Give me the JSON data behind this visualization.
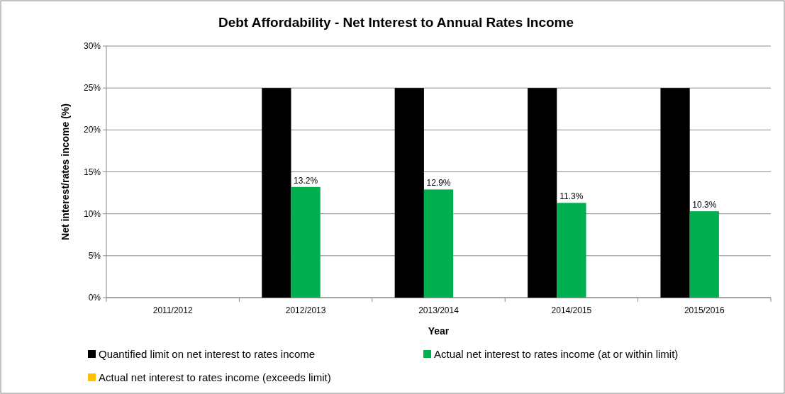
{
  "chart_data": {
    "type": "bar",
    "title": "Debt  Affordability - Net Interest to Annual Rates Income",
    "xlabel": "Year",
    "ylabel": "Net interest/rates income (%)",
    "categories": [
      "2011/2012",
      "2012/2013",
      "2013/2014",
      "2014/2015",
      "2015/2016"
    ],
    "series": [
      {
        "name": "Quantified limit on net interest to rates income",
        "color": "#000000",
        "values": [
          null,
          25,
          25,
          25,
          25
        ]
      },
      {
        "name": "Actual net interest to rates income (at or within limit)",
        "color": "#00b050",
        "values": [
          null,
          13.2,
          12.9,
          11.3,
          10.3
        ],
        "value_labels": [
          null,
          "13.2%",
          "12.9%",
          "11.3%",
          "10.3%"
        ]
      },
      {
        "name": "Actual net interest to rates income (exceeds limit)",
        "color": "#ffc000",
        "values": [
          null,
          null,
          null,
          null,
          null
        ]
      }
    ],
    "ylim": [
      0,
      30
    ],
    "yticks": [
      {
        "value": 0,
        "label": "0%"
      },
      {
        "value": 5,
        "label": "5%"
      },
      {
        "value": 10,
        "label": "10%"
      },
      {
        "value": 15,
        "label": "15%"
      },
      {
        "value": 20,
        "label": "20%"
      },
      {
        "value": 25,
        "label": "25%"
      },
      {
        "value": 30,
        "label": "30%"
      }
    ],
    "grid": "y",
    "legend": "bottom"
  }
}
